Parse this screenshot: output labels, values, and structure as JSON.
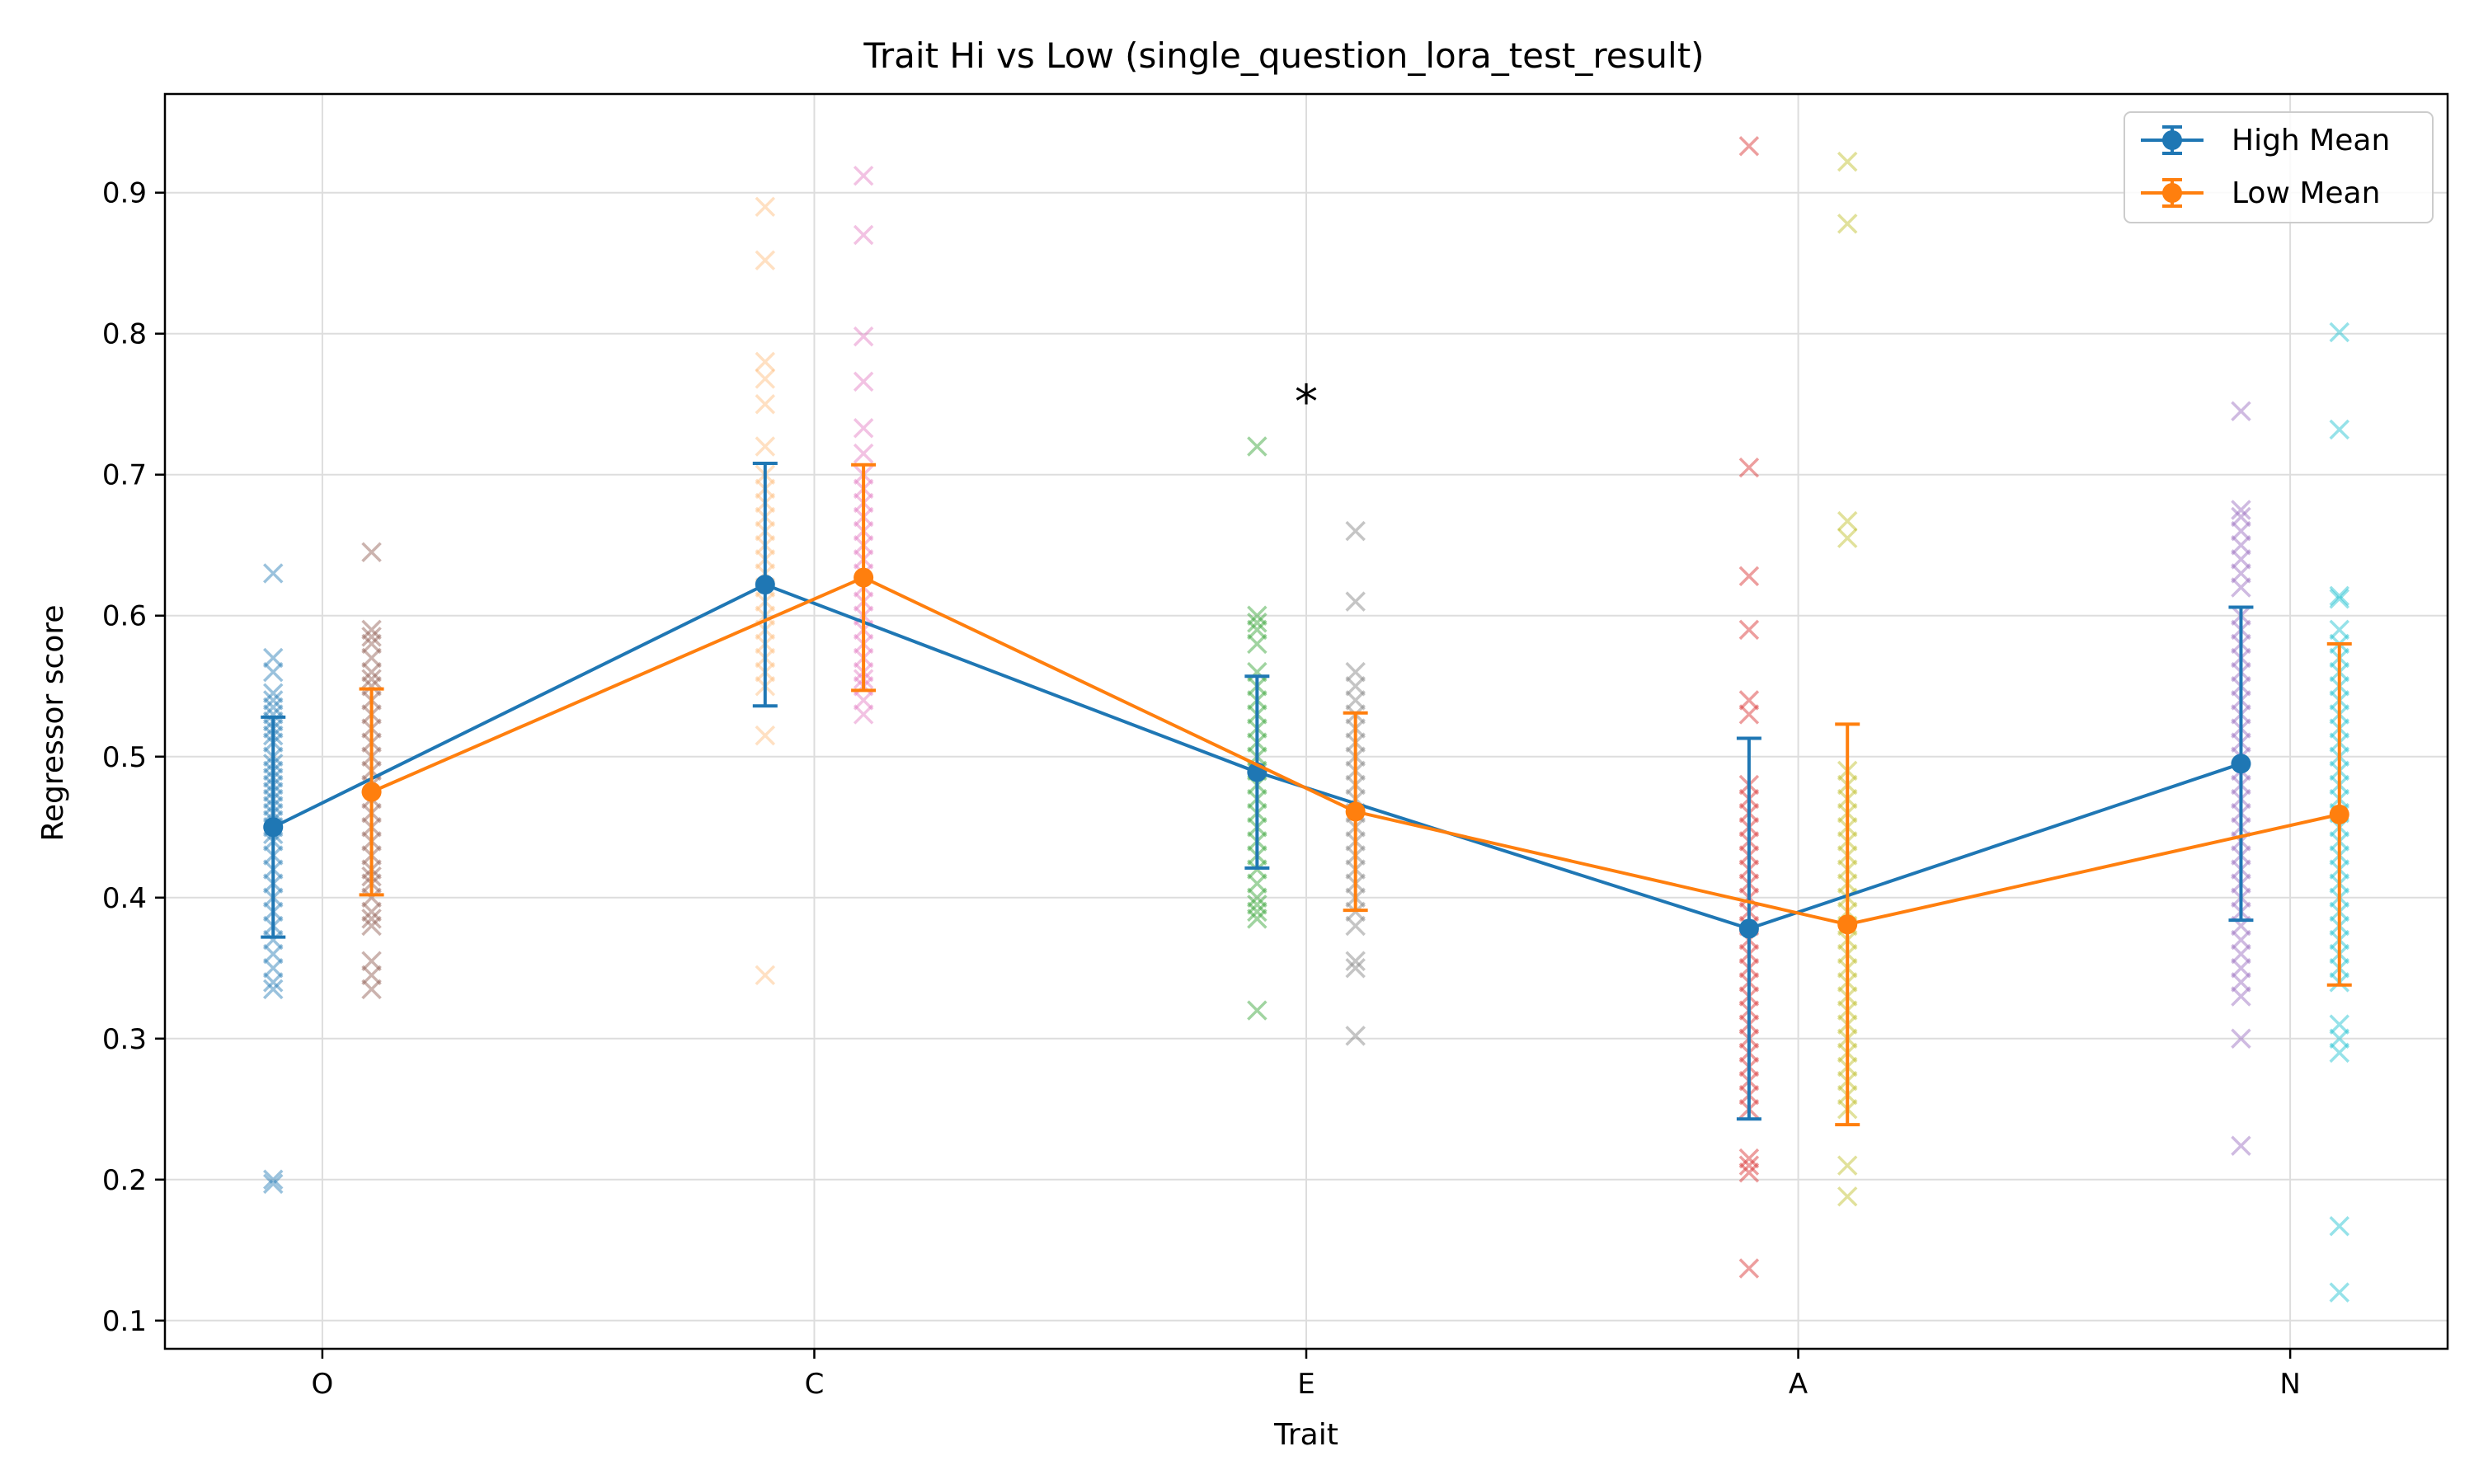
{
  "chart_data": {
    "type": "scatter",
    "title": "Trait Hi vs Low (single_question_lora_test_result)",
    "xlabel": "Trait",
    "ylabel": "Regressor score",
    "categories": [
      "O",
      "C",
      "E",
      "A",
      "N"
    ],
    "ylim": [
      0.08,
      0.97
    ],
    "yticks": [
      0.1,
      0.2,
      0.3,
      0.4,
      0.5,
      0.6,
      0.7,
      0.8,
      0.9
    ],
    "ytick_labels": [
      "0.1",
      "0.2",
      "0.3",
      "0.4",
      "0.5",
      "0.6",
      "0.7",
      "0.8",
      "0.9"
    ],
    "grid": true,
    "legend_position": "top-right",
    "series": [
      {
        "name": "High Mean",
        "color": "#1f77b4",
        "x_offset": -0.1,
        "means": [
          0.45,
          0.622,
          0.489,
          0.378,
          0.495
        ],
        "errors": [
          0.078,
          0.086,
          0.068,
          0.135,
          0.111
        ]
      },
      {
        "name": "Low Mean",
        "color": "#ff7f0e",
        "x_offset": 0.1,
        "means": [
          0.475,
          0.627,
          0.461,
          0.381,
          0.459
        ],
        "errors": [
          0.073,
          0.08,
          0.07,
          0.142,
          0.121
        ]
      }
    ],
    "raw_points": [
      {
        "category": "O",
        "group": "High",
        "color": "#1f77b4",
        "values": [
          0.63,
          0.57,
          0.56,
          0.545,
          0.54,
          0.535,
          0.53,
          0.525,
          0.52,
          0.515,
          0.51,
          0.5,
          0.495,
          0.49,
          0.485,
          0.48,
          0.475,
          0.47,
          0.465,
          0.46,
          0.455,
          0.45,
          0.445,
          0.44,
          0.43,
          0.42,
          0.41,
          0.4,
          0.39,
          0.38,
          0.37,
          0.36,
          0.35,
          0.34,
          0.335,
          0.2,
          0.197
        ]
      },
      {
        "category": "O",
        "group": "Low",
        "color": "#8c564b",
        "values": [
          0.645,
          0.59,
          0.585,
          0.58,
          0.57,
          0.56,
          0.555,
          0.55,
          0.54,
          0.53,
          0.52,
          0.51,
          0.5,
          0.49,
          0.48,
          0.47,
          0.46,
          0.45,
          0.44,
          0.43,
          0.42,
          0.415,
          0.41,
          0.4,
          0.39,
          0.385,
          0.38,
          0.355,
          0.345,
          0.335
        ]
      },
      {
        "category": "C",
        "group": "High",
        "color": "#ffbb78",
        "values": [
          0.89,
          0.852,
          0.78,
          0.768,
          0.75,
          0.72,
          0.7,
          0.69,
          0.68,
          0.67,
          0.66,
          0.65,
          0.64,
          0.63,
          0.62,
          0.61,
          0.6,
          0.59,
          0.58,
          0.57,
          0.56,
          0.55,
          0.515,
          0.345
        ]
      },
      {
        "category": "C",
        "group": "Low",
        "color": "#e377c2",
        "values": [
          0.912,
          0.87,
          0.798,
          0.766,
          0.733,
          0.715,
          0.7,
          0.69,
          0.68,
          0.67,
          0.66,
          0.65,
          0.64,
          0.63,
          0.62,
          0.61,
          0.6,
          0.59,
          0.58,
          0.57,
          0.56,
          0.555,
          0.55,
          0.54,
          0.53
        ]
      },
      {
        "category": "E",
        "group": "High",
        "color": "#2ca02c",
        "values": [
          0.72,
          0.6,
          0.595,
          0.59,
          0.58,
          0.56,
          0.55,
          0.54,
          0.53,
          0.52,
          0.51,
          0.5,
          0.49,
          0.48,
          0.47,
          0.46,
          0.45,
          0.44,
          0.43,
          0.42,
          0.41,
          0.4,
          0.395,
          0.39,
          0.385,
          0.32
        ]
      },
      {
        "category": "E",
        "group": "Low",
        "color": "#7f7f7f",
        "values": [
          0.66,
          0.61,
          0.56,
          0.55,
          0.54,
          0.53,
          0.52,
          0.51,
          0.5,
          0.49,
          0.48,
          0.47,
          0.46,
          0.45,
          0.44,
          0.43,
          0.42,
          0.41,
          0.4,
          0.39,
          0.38,
          0.355,
          0.35,
          0.302
        ]
      },
      {
        "category": "A",
        "group": "High",
        "color": "#d62728",
        "values": [
          0.933,
          0.705,
          0.628,
          0.59,
          0.54,
          0.53,
          0.48,
          0.47,
          0.46,
          0.45,
          0.44,
          0.43,
          0.42,
          0.41,
          0.4,
          0.39,
          0.38,
          0.37,
          0.36,
          0.35,
          0.34,
          0.33,
          0.32,
          0.31,
          0.3,
          0.29,
          0.28,
          0.27,
          0.26,
          0.25,
          0.215,
          0.21,
          0.205,
          0.137
        ]
      },
      {
        "category": "A",
        "group": "Low",
        "color": "#bcbd22",
        "values": [
          0.922,
          0.878,
          0.667,
          0.655,
          0.49,
          0.48,
          0.47,
          0.46,
          0.45,
          0.44,
          0.43,
          0.42,
          0.41,
          0.4,
          0.39,
          0.38,
          0.37,
          0.36,
          0.35,
          0.34,
          0.33,
          0.32,
          0.31,
          0.3,
          0.29,
          0.28,
          0.27,
          0.26,
          0.25,
          0.21,
          0.188
        ]
      },
      {
        "category": "N",
        "group": "High",
        "color": "#9467bd",
        "values": [
          0.745,
          0.675,
          0.67,
          0.66,
          0.65,
          0.64,
          0.63,
          0.62,
          0.6,
          0.59,
          0.58,
          0.57,
          0.56,
          0.55,
          0.54,
          0.53,
          0.52,
          0.51,
          0.5,
          0.49,
          0.48,
          0.47,
          0.46,
          0.45,
          0.44,
          0.43,
          0.42,
          0.41,
          0.4,
          0.39,
          0.38,
          0.37,
          0.36,
          0.35,
          0.34,
          0.33,
          0.3,
          0.224
        ]
      },
      {
        "category": "N",
        "group": "Low",
        "color": "#17becf",
        "values": [
          0.801,
          0.732,
          0.614,
          0.612,
          0.59,
          0.58,
          0.57,
          0.56,
          0.55,
          0.54,
          0.53,
          0.52,
          0.51,
          0.5,
          0.49,
          0.48,
          0.47,
          0.46,
          0.45,
          0.44,
          0.43,
          0.42,
          0.41,
          0.4,
          0.39,
          0.38,
          0.37,
          0.36,
          0.35,
          0.34,
          0.31,
          0.3,
          0.29,
          0.167,
          0.12
        ]
      }
    ],
    "annotations": [
      {
        "text": "*",
        "category": "E",
        "y": 0.757
      }
    ]
  }
}
